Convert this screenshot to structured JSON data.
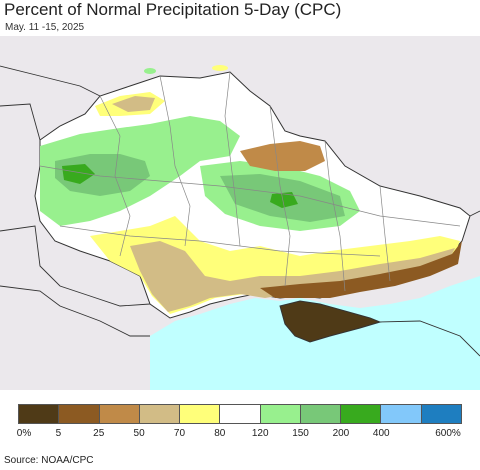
{
  "header": {
    "title": "Percent of Normal Precipitation 5-Day (CPC)",
    "subtitle": "May. 11 -15, 2025"
  },
  "legend": {
    "colors": [
      "#4f3a17",
      "#8c5a22",
      "#c08a48",
      "#d2bc86",
      "#ffff7a",
      "#ffffff",
      "#98f08e",
      "#78c878",
      "#38aa1e",
      "#82c8fa",
      "#1e7ec0"
    ],
    "labels": [
      "0%",
      "5",
      "25",
      "50",
      "70",
      "80",
      "120",
      "150",
      "200",
      "400",
      "600%"
    ]
  },
  "footer": {
    "source": "Source: NOAA/CPC"
  },
  "map": {
    "region": "Ukraine",
    "colors": {
      "land_outside": "#ebe8ec",
      "sea": "#c0ffff",
      "border": "#333333"
    }
  }
}
